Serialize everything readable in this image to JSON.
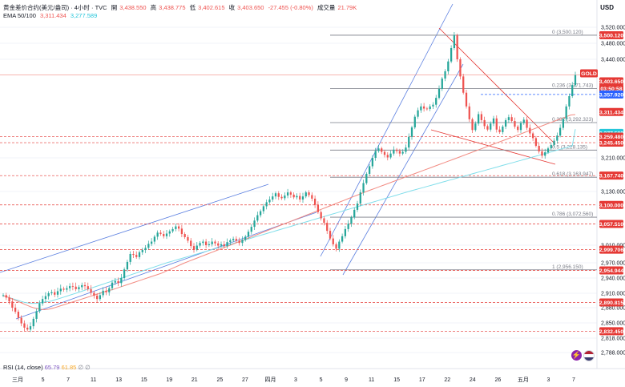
{
  "header": {
    "title": "黄金差价合约(美元/盎司) · 4小时 · TVC",
    "o_label": "開",
    "o": "3,438.550",
    "h_label": "高",
    "h": "3,438.775",
    "l_label": "低",
    "l": "3,402.615",
    "c_label": "收",
    "c": "3,403.650",
    "chg": "-27.455 (-0.80%)",
    "vol_label": "成交量",
    "vol": "21.79K",
    "ema_label": "EMA 50/100",
    "ema50": "3,311.434",
    "ema100": "3,277.589"
  },
  "currency": "USD",
  "rsi": {
    "label": "RSI (14, close)",
    "v1": "65.79",
    "v2": "61.85",
    "v3": "∅",
    "v4": "∅"
  },
  "colors": {
    "up": "#26a69a",
    "down": "#ef5350",
    "ema50": "#f28b82",
    "ema100": "#80deea",
    "fib": "#787b86",
    "channel": "#5b7fe0",
    "level": "#e53935",
    "grid": "#f0f3fa"
  },
  "chart_data": {
    "type": "candlestick",
    "symbol": "GOLD",
    "interval": "4小时",
    "y_ticks": [
      "3,520.000",
      "3,480.000",
      "3,440.000",
      "3,210.000",
      "3,130.000",
      "3,010.000",
      "2,970.000",
      "2,940.000",
      "2,910.000",
      "2,880.000",
      "2,850.000",
      "2,818.000",
      "2,788.000"
    ],
    "y_tick_values": [
      3520,
      3480,
      3440,
      3210,
      3130,
      3010,
      2970,
      2940,
      2910,
      2880,
      2850,
      2818,
      2788
    ],
    "x_ticks": [
      "三月",
      "5",
      "7",
      "11",
      "13",
      "15",
      "19",
      "21",
      "25",
      "27",
      "四月",
      "3",
      "5",
      "9",
      "11",
      "15",
      "17",
      "22",
      "24",
      "26",
      "五月",
      "3",
      "7"
    ],
    "x_tick_dates": [
      "2025-03-01",
      "2025-03-05",
      "2025-03-07",
      "2025-03-11",
      "2025-03-13",
      "2025-03-15",
      "2025-03-19",
      "2025-03-21",
      "2025-03-25",
      "2025-03-27",
      "2025-04-01",
      "2025-04-03",
      "2025-04-05",
      "2025-04-09",
      "2025-04-11",
      "2025-04-15",
      "2025-04-17",
      "2025-04-22",
      "2025-04-24",
      "2025-04-26",
      "2025-05-01",
      "2025-05-03",
      "2025-05-07"
    ],
    "fib_levels": [
      {
        "label": "0 (3,500.120)",
        "value": 3500.12
      },
      {
        "label": "0.236 (3,371.743)",
        "value": 3371.743
      },
      {
        "label": "0.382 (3,292.323)",
        "value": 3292.323
      },
      {
        "label": "0.5 (3,228.135)",
        "value": 3228.135
      },
      {
        "label": "0.618 (3,163.947)",
        "value": 3163.947
      },
      {
        "label": "0.786 (3,072.560)",
        "value": 3072.56
      },
      {
        "label": "1 (2,956.150)",
        "value": 2956.15
      }
    ],
    "price_tags": [
      {
        "label": "3,500.120",
        "value": 3500.12,
        "kind": "red"
      },
      {
        "label": "GOLD",
        "value": 3403.65,
        "kind": "current-sym"
      },
      {
        "label": "3,403.650",
        "value": 3403.65,
        "kind": "current"
      },
      {
        "label": "03:50:58",
        "value": 3403.65,
        "kind": "timer"
      },
      {
        "label": "3,357.920",
        "value": 3357.92,
        "kind": "blue"
      },
      {
        "label": "3,311.434",
        "value": 3311.434,
        "kind": "ema50"
      },
      {
        "label": "3,277.589",
        "value": 3277.589,
        "kind": "ema100"
      },
      {
        "label": "3,259.480",
        "value": 3259.48,
        "kind": "red"
      },
      {
        "label": "3,245.450",
        "value": 3245.45,
        "kind": "red"
      },
      {
        "label": "3,167.740",
        "value": 3167.74,
        "kind": "red"
      },
      {
        "label": "3,100.000",
        "value": 3100.0,
        "kind": "red"
      },
      {
        "label": "3,057.510",
        "value": 3057.51,
        "kind": "red"
      },
      {
        "label": "2,999.706",
        "value": 2999.706,
        "kind": "red"
      },
      {
        "label": "2,954.944",
        "value": 2954.944,
        "kind": "red"
      },
      {
        "label": "2,890.815",
        "value": 2890.815,
        "kind": "red"
      },
      {
        "label": "2,832.450",
        "value": 2832.45,
        "kind": "red"
      }
    ],
    "closes": [
      2906,
      2901,
      2893,
      2880,
      2872,
      2860,
      2849,
      2840,
      2836,
      2843,
      2858,
      2873,
      2889,
      2898,
      2904,
      2910,
      2912,
      2907,
      2914,
      2919,
      2917,
      2920,
      2924,
      2923,
      2918,
      2922,
      2926,
      2924,
      2918,
      2911,
      2905,
      2898,
      2906,
      2915,
      2912,
      2920,
      2931,
      2934,
      2930,
      2940,
      2957,
      2972,
      2990,
      2988,
      2983,
      2994,
      2999,
      3004,
      3013,
      3018,
      3029,
      3038,
      3035,
      3030,
      3036,
      3041,
      3046,
      3052,
      3047,
      3035,
      3028,
      3020,
      3008,
      3000,
      3009,
      3015,
      3018,
      3010,
      3012,
      3018,
      3014,
      3009,
      3012,
      3008,
      3017,
      3021,
      3024,
      3020,
      3015,
      3022,
      3029,
      3040,
      3051,
      3065,
      3077,
      3086,
      3097,
      3106,
      3112,
      3119,
      3126,
      3118,
      3115,
      3121,
      3128,
      3123,
      3117,
      3120,
      3112,
      3119,
      3128,
      3122,
      3114,
      3100,
      3084,
      3070,
      3060,
      3042,
      3025,
      3012,
      3002,
      3018,
      3030,
      3046,
      3058,
      3072,
      3089,
      3103,
      3128,
      3150,
      3172,
      3190,
      3210,
      3226,
      3232,
      3224,
      3217,
      3211,
      3220,
      3229,
      3226,
      3220,
      3224,
      3234,
      3259,
      3281,
      3306,
      3321,
      3330,
      3325,
      3324,
      3330,
      3334,
      3350,
      3371,
      3395,
      3412,
      3435,
      3468,
      3500,
      3440,
      3400,
      3362,
      3330,
      3300,
      3275,
      3290,
      3312,
      3298,
      3284,
      3276,
      3290,
      3302,
      3276,
      3270,
      3283,
      3298,
      3305,
      3296,
      3283,
      3275,
      3291,
      3299,
      3280,
      3267,
      3256,
      3238,
      3225,
      3215,
      3223,
      3232,
      3240,
      3250,
      3262,
      3280,
      3301,
      3330,
      3354,
      3380,
      3403
    ],
    "ema50": {
      "from_index": 0,
      "values": [
        2905,
        2902,
        2898,
        2894,
        2890,
        2886,
        2882,
        2879,
        2877,
        2876,
        2877,
        2879,
        2882,
        2885,
        2888,
        2891,
        2894,
        2897,
        2900,
        2903,
        2906,
        2909,
        2912,
        2915,
        2917,
        2920,
        2923,
        2926,
        2929,
        2932,
        2935,
        2938,
        2941,
        2944,
        2947,
        2950,
        2954,
        2958,
        2962,
        2966,
        2970,
        2974,
        2978,
        2982,
        2986,
        2990,
        2994,
        2998,
        3002,
        3006,
        3010,
        3014,
        3018,
        3022,
        3026,
        3030,
        3034,
        3038,
        3042,
        3046,
        3050,
        3054,
        3058,
        3062,
        3066,
        3070,
        3074,
        3078,
        3082,
        3086,
        3090,
        3094,
        3098,
        3102,
        3106,
        3110,
        3114,
        3118,
        3122,
        3126,
        3130,
        3134,
        3138,
        3142,
        3146,
        3150,
        3154,
        3158,
        3162,
        3166,
        3170,
        3174,
        3178,
        3182,
        3186,
        3190,
        3194,
        3198,
        3202,
        3206,
        3210,
        3214,
        3218,
        3222,
        3226,
        3230,
        3234,
        3238,
        3242,
        3246,
        3250,
        3254,
        3258,
        3262,
        3266,
        3270,
        3274,
        3278,
        3282,
        3286,
        3290,
        3294,
        3298,
        3302,
        3306,
        3310,
        3311
      ]
    },
    "ema100": {
      "from_index": 0,
      "values": [
        2905,
        2903,
        2901,
        2899,
        2897,
        2895,
        2893,
        2891,
        2890,
        2889,
        2889,
        2889,
        2890,
        2891,
        2892,
        2893,
        2894,
        2896,
        2898,
        2900,
        2902,
        2904,
        2906,
        2908,
        2910,
        2912,
        2914,
        2916,
        2918,
        2920,
        2922,
        2924,
        2926,
        2928,
        2930,
        2932,
        2934,
        2936,
        2938,
        2940,
        2942,
        2944,
        2946,
        2948,
        2950,
        2952,
        2954,
        2956,
        2958,
        2960,
        2962,
        2964,
        2966,
        2968,
        2970,
        2972,
        2974,
        2976,
        2978,
        2980,
        2982,
        2984,
        2986,
        2988,
        2990,
        2992,
        2994,
        2996,
        2998,
        3000,
        3002,
        3004,
        3006,
        3008,
        3010,
        3012,
        3014,
        3016,
        3018,
        3020,
        3022,
        3024,
        3026,
        3028,
        3030,
        3032,
        3034,
        3036,
        3038,
        3040,
        3042,
        3044,
        3046,
        3048,
        3050,
        3052,
        3054,
        3056,
        3058,
        3060,
        3062,
        3064,
        3066,
        3068,
        3070,
        3072,
        3074,
        3076,
        3078,
        3080,
        3082,
        3084,
        3086,
        3088,
        3090,
        3092,
        3094,
        3096,
        3098,
        3100,
        3102,
        3104,
        3106,
        3108,
        3110,
        3112,
        3114,
        3116,
        3118,
        3120,
        3122,
        3124,
        3126,
        3128,
        3130,
        3132,
        3134,
        3136,
        3138,
        3140,
        3142,
        3144,
        3146,
        3148,
        3150,
        3152,
        3154,
        3156,
        3158,
        3160,
        3162,
        3164,
        3166,
        3168,
        3170,
        3172,
        3174,
        3176,
        3178,
        3180,
        3182,
        3184,
        3186,
        3188,
        3190,
        3192,
        3194,
        3196,
        3198,
        3200,
        3202,
        3204,
        3206,
        3208,
        3210,
        3212,
        3214,
        3216,
        3218,
        3220,
        3222,
        3224,
        3226,
        3228,
        3230,
        3232,
        3234,
        3236,
        3238,
        3277
      ]
    }
  }
}
